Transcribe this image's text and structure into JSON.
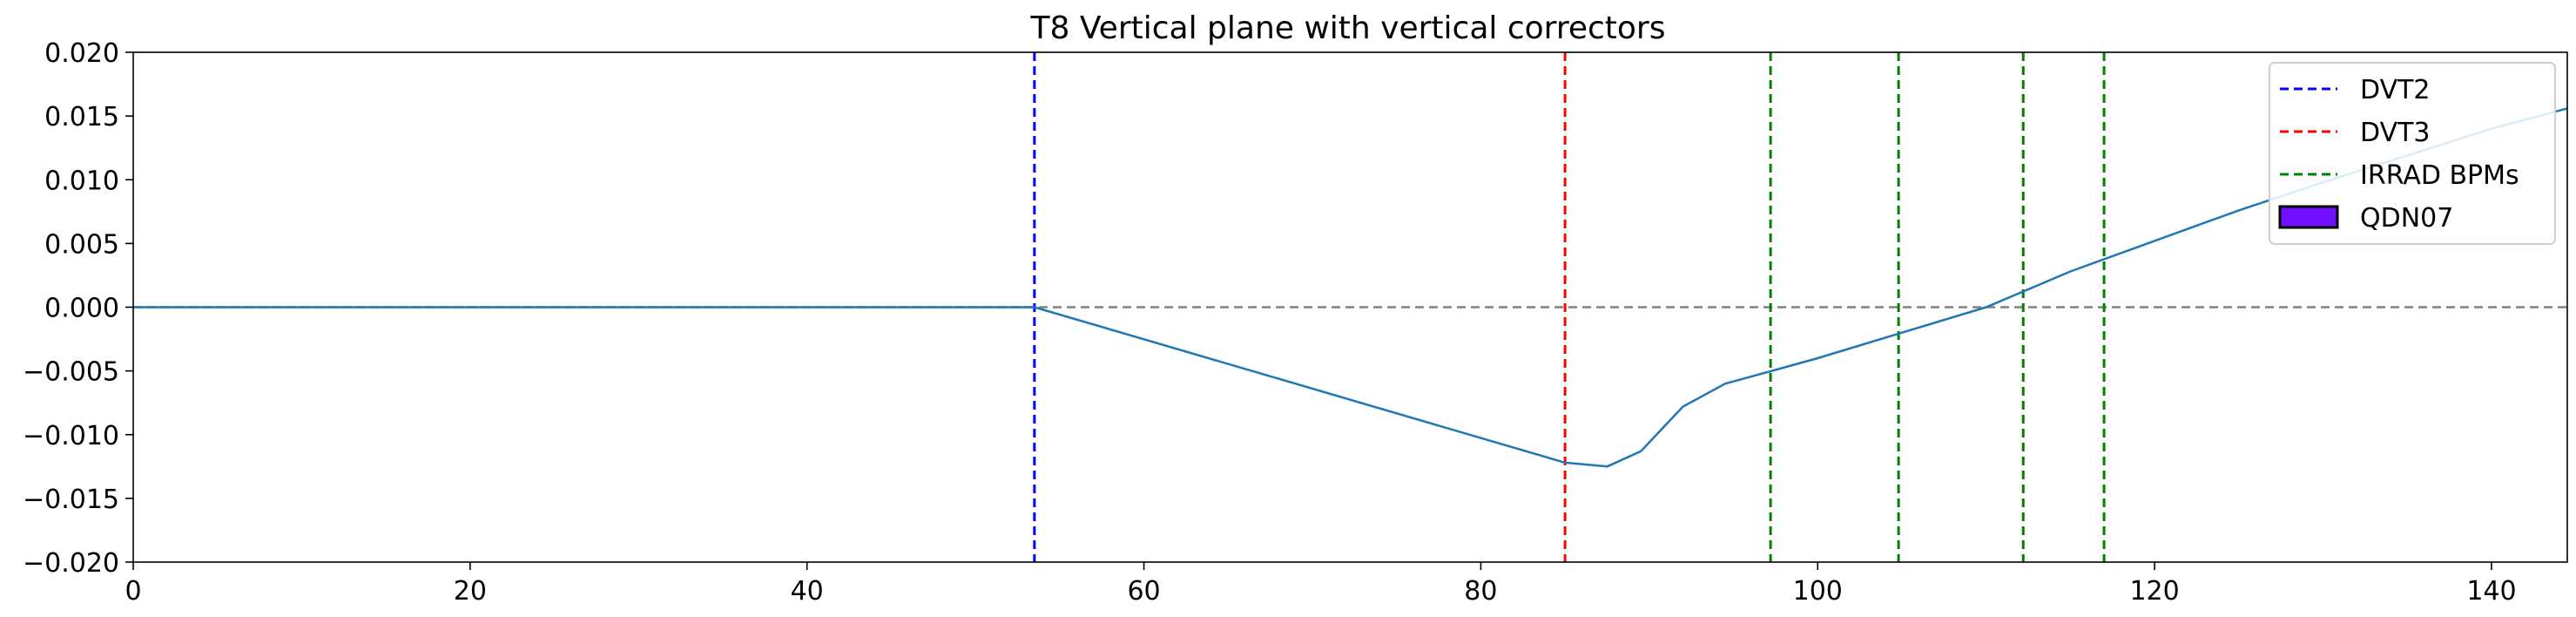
{
  "chart_data": {
    "type": "line",
    "title": "T8 Vertical plane with vertical correctors",
    "xlabel": "",
    "ylabel": "",
    "xlim": [
      0,
      144.5
    ],
    "ylim": [
      -0.02,
      0.02
    ],
    "x_ticks": [
      0,
      20,
      40,
      60,
      80,
      100,
      120,
      140
    ],
    "x_tick_labels": [
      "0",
      "20",
      "40",
      "60",
      "80",
      "100",
      "120",
      "140"
    ],
    "y_ticks": [
      0.02,
      0.015,
      0.01,
      0.005,
      0.0,
      -0.005,
      -0.01,
      -0.015,
      -0.02
    ],
    "y_tick_labels": [
      "0.020",
      "0.015",
      "0.010",
      "0.005",
      "0.000",
      "−0.005",
      "−0.010",
      "−0.015",
      "−0.020"
    ],
    "grid": false,
    "reference_line": {
      "y": 0.0,
      "color": "#808080",
      "style": "dashed"
    },
    "series": [
      {
        "color": "#1f77b4",
        "x": [
          0,
          53.5,
          85.0,
          87.5,
          89.5,
          92.0,
          94.5,
          97.0,
          100.0,
          105.0,
          110.0,
          115.0,
          120.0,
          125.0,
          130.0,
          135.0,
          140.0,
          144.5
        ],
        "y": [
          0.0,
          0.0,
          -0.0122,
          -0.0125,
          -0.0113,
          -0.0078,
          -0.006,
          -0.0051,
          -0.004,
          -0.002,
          0.0,
          0.0028,
          0.0052,
          0.0076,
          0.0098,
          0.0119,
          0.014,
          0.0156
        ]
      }
    ],
    "vlines": [
      {
        "label": "DVT2",
        "x": 53.5,
        "color": "#0000ff"
      },
      {
        "label": "DVT3",
        "x": 85.0,
        "color": "#ff0000"
      },
      {
        "label": "IRRAD BPMs",
        "x": 97.2,
        "color": "#008000"
      },
      {
        "label": "IRRAD BPMs",
        "x": 104.8,
        "color": "#008000"
      },
      {
        "label": "IRRAD BPMs",
        "x": 112.2,
        "color": "#008000"
      },
      {
        "label": "IRRAD BPMs",
        "x": 117.0,
        "color": "#008000"
      }
    ],
    "legend": {
      "placement": "top-right",
      "entries": [
        {
          "label": "DVT2",
          "kind": "dashed-line",
          "color": "#0000ff"
        },
        {
          "label": "DVT3",
          "kind": "dashed-line",
          "color": "#ff0000"
        },
        {
          "label": "IRRAD BPMs",
          "kind": "dashed-line",
          "color": "#008000"
        },
        {
          "label": "QDN07",
          "kind": "patch",
          "color": "#7010ff",
          "edge": "#000000"
        }
      ]
    }
  }
}
